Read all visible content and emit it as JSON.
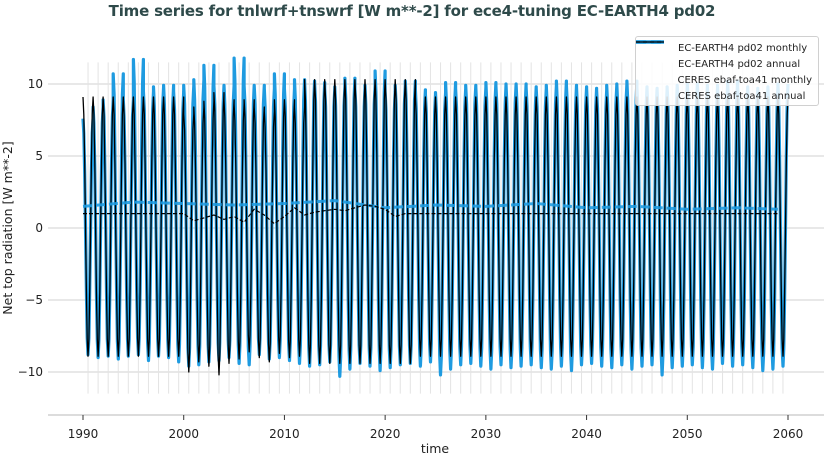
{
  "title": "Time series for tnlwrf+tnswrf [W m**-2] for ece4-tuning EC-EARTH4 pd02",
  "colors": {
    "model": "#1f9be0",
    "obs": "#000000",
    "grid": "#d9d9d9",
    "title": "#2e4a4a"
  },
  "legend": {
    "items": [
      {
        "label": "EC-EARTH4 pd02 monthly",
        "style": "solid-thick",
        "color": "#1f9be0"
      },
      {
        "label": "EC-EARTH4 pd02 annual",
        "style": "dashed-thick",
        "color": "#1f9be0"
      },
      {
        "label": "CERES ebaf-toa41 monthly",
        "style": "solid-thin",
        "color": "#000000"
      },
      {
        "label": "CERES ebaf-toa41 annual",
        "style": "dashed-thin",
        "color": "#000000"
      }
    ]
  },
  "axes": {
    "xlabel": "time",
    "ylabel": "Net top radiation [W m**-2]",
    "xticks": [
      "1990",
      "2000",
      "2010",
      "2020",
      "2030",
      "2040",
      "2050",
      "2060"
    ],
    "yticks": [
      "10",
      "5",
      "0",
      "−5",
      "−10"
    ]
  },
  "chart_data": {
    "type": "line",
    "title": "Time series for tnlwrf+tnswrf [W m**-2] for ece4-tuning EC-EARTH4 pd02",
    "xlabel": "time",
    "ylabel": "Net top radiation [W m**-2]",
    "xlim": [
      1987,
      2066
    ],
    "ylim": [
      -13,
      12.5
    ],
    "grid": true,
    "legend_position": "upper right",
    "x_ticks": [
      1990,
      2000,
      2010,
      2020,
      2030,
      2040,
      2050,
      2060
    ],
    "y_ticks": [
      -10,
      -5,
      0,
      5,
      10
    ],
    "series": [
      {
        "name": "EC-EARTH4 pd02 monthly",
        "style": "solid thick blue",
        "description": "Seasonal cycle oscillating roughly between -9 and +10 W m-2 each year, 1990-2060",
        "annual_max_approx": [
          7.6,
          8.4,
          8.9,
          10.7,
          8.9,
          11.7,
          9.5,
          9.8,
          9.9,
          9.5,
          9.9,
          10.3,
          11.3,
          9.9,
          9.9,
          11.8,
          9.9,
          9.9,
          9.7,
          10.7,
          9.7,
          10.3,
          10.2,
          10.1,
          9.7,
          9.8,
          10.4,
          9.7,
          9.9,
          10.9,
          9.5,
          9.9,
          10.2,
          9.6,
          9.3,
          9.4,
          10.1,
          9.7,
          9.9,
          9.8,
          10.1,
          9.9,
          10.0,
          10.0,
          9.8,
          9.7,
          9.9,
          10.2,
          9.9,
          9.8,
          9.7,
          9.6,
          9.9,
          10.0,
          10.2,
          9.8,
          9.7,
          9.6,
          9.8,
          9.9,
          10.0,
          9.9,
          9.7,
          9.9,
          10.2,
          9.8,
          9.7,
          9.6,
          9.8,
          10.0,
          8.0
        ],
        "annual_min_approx": [
          -8.8,
          -9.0,
          -8.9,
          -9.1,
          -8.9,
          -8.8,
          -9.2,
          -8.9,
          -9.0,
          -9.3,
          -9.6,
          -9.5,
          -9.3,
          -9.2,
          -9.0,
          -9.4,
          -9.5,
          -8.8,
          -9.1,
          -9.0,
          -9.2,
          -9.4,
          -9.6,
          -9.5,
          -9.3,
          -10.3,
          -9.8,
          -9.4,
          -9.6,
          -9.9,
          -9.7,
          -9.5,
          -9.4,
          -9.6,
          -9.3,
          -10.2,
          -9.8,
          -9.5,
          -9.4,
          -9.6,
          -9.8,
          -9.5,
          -9.7,
          -9.6,
          -9.5,
          -9.7,
          -9.8,
          -9.6,
          -9.9,
          -9.5,
          -9.4,
          -9.6,
          -9.7,
          -9.5,
          -9.8,
          -9.6,
          -9.5,
          -10.2,
          -9.7,
          -9.6,
          -9.5,
          -9.7,
          -9.8,
          -9.4,
          -9.6,
          -9.5,
          -9.7,
          -9.9,
          -9.8,
          -9.6,
          -9.4
        ]
      },
      {
        "name": "EC-EARTH4 pd02 annual",
        "style": "dashed thick blue",
        "x": [
          1990,
          1995,
          2000,
          2005,
          2010,
          2015,
          2020,
          2025,
          2030,
          2035,
          2040,
          2045,
          2050,
          2055,
          2059
        ],
        "values": [
          1.5,
          1.8,
          1.7,
          1.6,
          1.7,
          1.9,
          1.4,
          1.6,
          1.5,
          1.7,
          1.4,
          1.5,
          1.3,
          1.4,
          1.3
        ]
      },
      {
        "name": "CERES ebaf-toa41 monthly",
        "style": "solid thin black",
        "description": "Observed seasonal cycle 2000-2022 repeated as climatology outside; range approx -10.3 to +10.3 W m-2",
        "annual_max_approx": [
          9.1,
          9.1,
          9.1,
          9.1,
          9.1,
          9.1,
          9.1,
          9.1,
          9.1,
          9.1,
          7.9,
          8.4,
          8.8,
          9.4,
          8.9,
          8.6,
          8.9,
          8.4,
          8.1,
          8.9,
          8.9,
          8.4,
          10.3
        ],
        "annual_min_approx": [
          -8.9,
          -8.9,
          -8.9,
          -8.9,
          -8.9,
          -8.9,
          -8.9,
          -8.9,
          -8.9,
          -8.9,
          -10.0,
          -9.3,
          -9.6,
          -10.2,
          -9.4,
          -9.1,
          -8.6,
          -9.0,
          -9.3,
          -8.7,
          -9.0,
          -8.9,
          -9.4
        ]
      },
      {
        "name": "CERES ebaf-toa41 annual",
        "style": "dashed thin black",
        "x": [
          1990,
          2000,
          2001,
          2002,
          2003,
          2004,
          2005,
          2006,
          2007,
          2008,
          2009,
          2010,
          2011,
          2012,
          2013,
          2014,
          2015,
          2016,
          2017,
          2018,
          2019,
          2020,
          2021,
          2022,
          2059
        ],
        "values": [
          1.0,
          1.0,
          0.5,
          0.7,
          0.9,
          0.6,
          0.8,
          0.4,
          1.3,
          0.9,
          0.3,
          0.8,
          1.4,
          0.9,
          1.1,
          1.2,
          1.3,
          1.2,
          1.4,
          1.6,
          1.5,
          1.3,
          0.8,
          1.0,
          1.0
        ]
      }
    ]
  }
}
